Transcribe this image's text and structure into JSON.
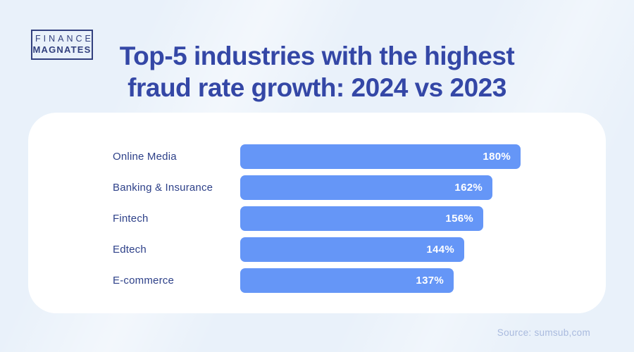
{
  "page": {
    "background_color": "#e9f1fa",
    "card_color": "#ffffff",
    "source_text": "Source: sumsub,com",
    "source_color": "#a9bade"
  },
  "logo": {
    "line1": "FINANCE",
    "line2": "MAGNATES",
    "color": "#32407e"
  },
  "title": {
    "line1": "Top-5 industries with the highest",
    "line2": "fraud rate growth: 2024 vs 2023",
    "color": "#3447a6"
  },
  "chart_data": {
    "type": "bar",
    "orientation": "horizontal",
    "title": "Top-5 industries with the highest fraud rate growth: 2024 vs 2023",
    "categories": [
      "Online Media",
      "Banking & Insurance",
      "Fintech",
      "Edtech",
      "E-commerce"
    ],
    "values": [
      180,
      162,
      156,
      144,
      137
    ],
    "value_labels": [
      "180%",
      "162%",
      "156%",
      "144%",
      "137%"
    ],
    "unit": "%",
    "bar_color": "#6596f7",
    "value_label_color": "#ffffff",
    "category_label_color": "#2e4189",
    "xlim": [
      0,
      180
    ],
    "grid": false,
    "legend": false,
    "value_labels_position": "inside-end"
  }
}
